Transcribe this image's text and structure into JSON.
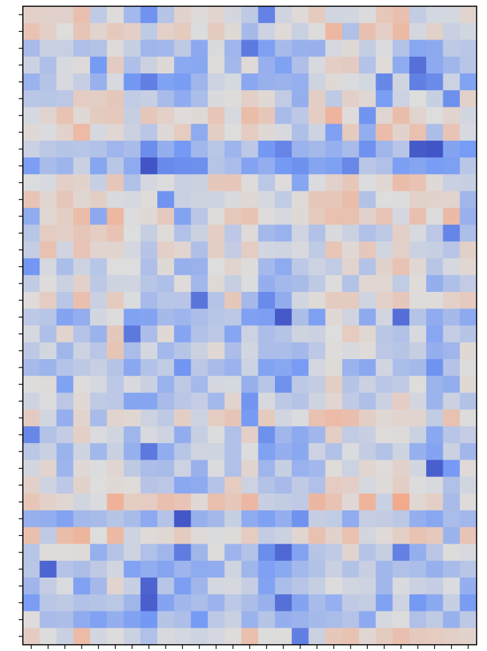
{
  "chart_data": {
    "type": "heatmap",
    "title": "",
    "xlabel": "",
    "ylabel": "",
    "n_rows": 38,
    "n_cols": 27,
    "colormap": "coolwarm",
    "vmin": 0,
    "vmax": 1,
    "colorbar": false,
    "x_tick_labels_shown": false,
    "y_tick_labels_shown": false,
    "row_profiles": [
      0.52,
      0.56,
      0.4,
      0.45,
      0.38,
      0.48,
      0.55,
      0.55,
      0.33,
      0.32,
      0.55,
      0.55,
      0.58,
      0.48,
      0.52,
      0.48,
      0.47,
      0.5,
      0.37,
      0.45,
      0.46,
      0.4,
      0.43,
      0.44,
      0.54,
      0.46,
      0.42,
      0.45,
      0.46,
      0.6,
      0.37,
      0.55,
      0.43,
      0.35,
      0.42,
      0.35,
      0.38,
      0.54
    ],
    "column_profiles": [
      0.02,
      0.03,
      0.0,
      0.04,
      0.0,
      0.05,
      -0.05,
      -0.05,
      -0.02,
      -0.06,
      -0.06,
      0.0,
      0.02,
      0.0,
      -0.05,
      -0.1,
      -0.08,
      0.0,
      0.05,
      0.03,
      0.0,
      0.02,
      0.04,
      -0.02,
      -0.06,
      0.0,
      0.0
    ],
    "seed": 7
  }
}
